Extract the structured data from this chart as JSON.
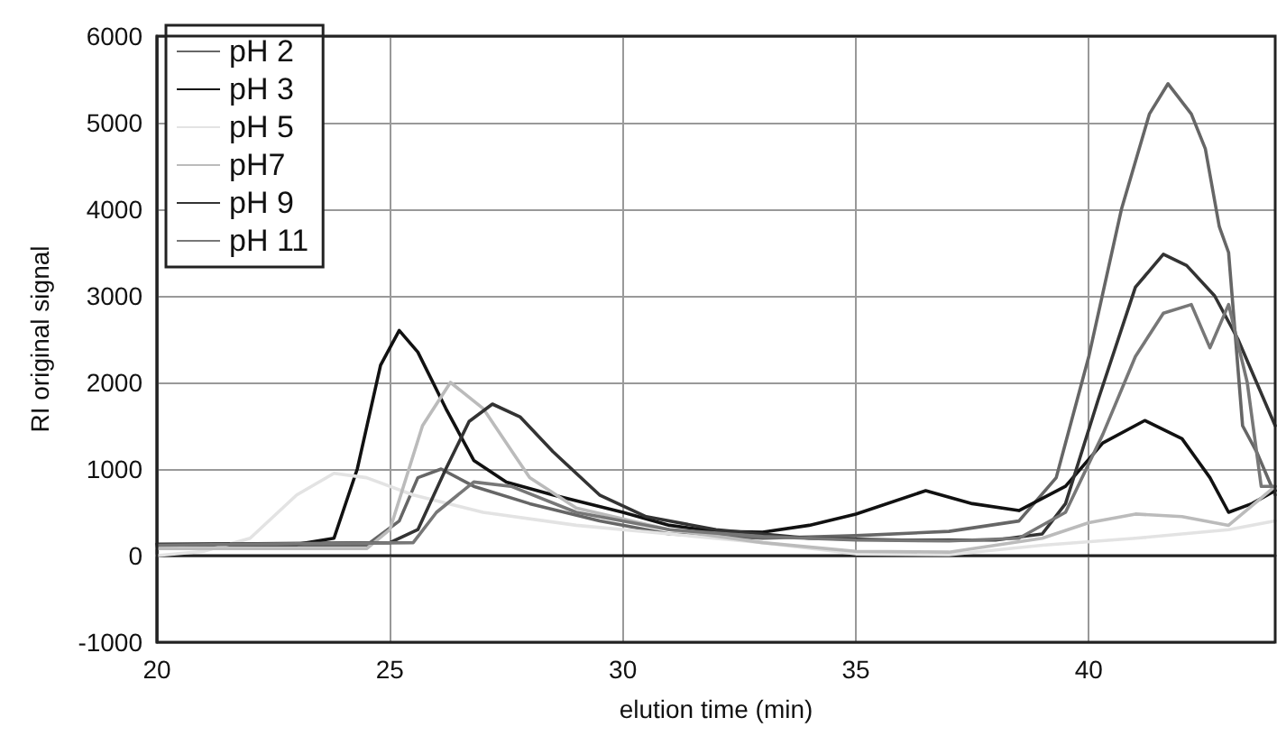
{
  "chart_data": {
    "type": "line",
    "xlabel": "elution time (min)",
    "ylabel": "RI original signal",
    "xlim": [
      20,
      44
    ],
    "xticks": [
      20,
      25,
      30,
      35,
      40
    ],
    "ylim": [
      -1000,
      6000
    ],
    "yticks": [
      -1000,
      0,
      1000,
      2000,
      3000,
      4000,
      5000,
      6000
    ],
    "grid": true,
    "legend": "top left",
    "marker": "none",
    "line_style": "solid",
    "series": [
      {
        "name": "pH 2",
        "color": "#666666",
        "x": [
          20,
          24.5,
          25.2,
          25.6,
          26.1,
          26.8,
          28,
          29.5,
          31,
          33,
          35,
          37,
          38.5,
          39.3,
          40,
          40.7,
          41.3,
          41.7,
          42.2,
          42.5,
          42.8,
          43,
          43.3,
          43.6,
          44
        ],
        "values": [
          120,
          120,
          400,
          900,
          1000,
          800,
          600,
          400,
          250,
          200,
          230,
          280,
          400,
          900,
          2300,
          4000,
          5100,
          5450,
          5100,
          4700,
          3800,
          3500,
          1500,
          1200,
          700
        ]
      },
      {
        "name": "pH 3",
        "color": "#111111",
        "x": [
          20,
          23,
          23.8,
          24.3,
          24.8,
          25.2,
          25.6,
          26.2,
          26.8,
          27.5,
          28.5,
          30,
          31,
          32,
          33,
          34,
          35,
          36.5,
          37.5,
          38.5,
          39.5,
          40.3,
          41.2,
          42,
          42.6,
          43,
          43.5,
          44
        ],
        "values": [
          130,
          130,
          200,
          1000,
          2200,
          2600,
          2350,
          1700,
          1100,
          850,
          700,
          500,
          350,
          280,
          270,
          350,
          480,
          750,
          600,
          520,
          800,
          1300,
          1560,
          1350,
          900,
          500,
          600,
          750
        ]
      },
      {
        "name": "pH 5",
        "color": "#e3e3e3",
        "x": [
          20,
          21,
          22,
          23,
          23.8,
          24.5,
          25.5,
          27,
          29,
          31,
          33,
          35,
          37,
          39,
          41,
          43,
          44
        ],
        "values": [
          0,
          50,
          200,
          700,
          950,
          900,
          700,
          500,
          350,
          250,
          150,
          20,
          10,
          120,
          200,
          300,
          400
        ]
      },
      {
        "name": "pH7",
        "color": "#bbbbbb",
        "x": [
          20,
          24.5,
          25,
          25.7,
          26.3,
          27,
          28,
          29,
          31,
          33,
          35,
          37,
          39,
          40,
          41,
          42,
          43,
          44
        ],
        "values": [
          80,
          80,
          300,
          1500,
          2000,
          1700,
          900,
          550,
          300,
          150,
          50,
          40,
          200,
          380,
          480,
          450,
          350,
          800
        ]
      },
      {
        "name": "pH 9",
        "color": "#333333",
        "x": [
          20,
          25,
          25.6,
          26.2,
          26.7,
          27.2,
          27.8,
          28.5,
          29.5,
          30.5,
          32,
          34,
          36,
          38,
          39,
          39.5,
          40.2,
          41,
          41.6,
          42.1,
          42.7,
          43.2,
          43.6,
          44
        ],
        "values": [
          130,
          150,
          300,
          1000,
          1550,
          1750,
          1600,
          1200,
          700,
          450,
          300,
          200,
          180,
          180,
          250,
          600,
          1800,
          3100,
          3480,
          3350,
          3000,
          2500,
          2000,
          1500
        ]
      },
      {
        "name": "pH 11",
        "color": "#777777",
        "x": [
          20,
          25.5,
          26,
          26.8,
          27.6,
          29,
          31,
          33,
          35,
          37,
          38.5,
          39.5,
          40.3,
          41,
          41.6,
          42.2,
          42.6,
          43,
          43.4,
          43.7,
          44
        ],
        "values": [
          120,
          150,
          500,
          850,
          800,
          500,
          300,
          220,
          180,
          170,
          200,
          500,
          1400,
          2300,
          2800,
          2900,
          2400,
          2900,
          2000,
          800,
          800
        ]
      }
    ]
  }
}
